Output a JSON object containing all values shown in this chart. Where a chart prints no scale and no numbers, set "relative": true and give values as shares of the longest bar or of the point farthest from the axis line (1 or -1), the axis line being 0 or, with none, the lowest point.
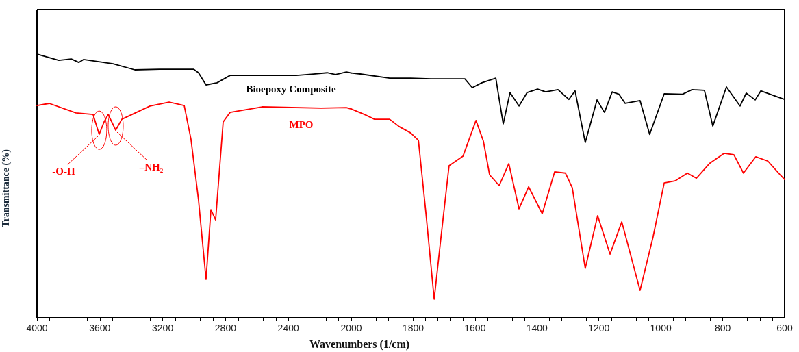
{
  "chart_data": [
    {
      "type": "line",
      "relative": true,
      "ylabel": "Transmittance (%)",
      "legend": false,
      "grid": false,
      "marker": "none",
      "line_style": "solid",
      "xlim": [
        4000,
        2000
      ],
      "xticks": [
        4000,
        {
          "value": 3920,
          "label": null
        },
        {
          "value": 3840,
          "label": null
        },
        {
          "value": 3760,
          "label": null
        },
        {
          "value": 3680,
          "label": null
        },
        3600,
        {
          "value": 3520,
          "label": null
        },
        {
          "value": 3440,
          "label": null
        },
        {
          "value": 3360,
          "label": null
        },
        {
          "value": 3280,
          "label": null
        },
        3200,
        {
          "value": 3120,
          "label": null
        },
        {
          "value": 3040,
          "label": null
        },
        {
          "value": 2960,
          "label": null
        },
        {
          "value": 2880,
          "label": null
        },
        2800,
        {
          "value": 2720,
          "label": null
        },
        {
          "value": 2640,
          "label": null
        },
        {
          "value": 2560,
          "label": null
        },
        {
          "value": 2480,
          "label": null
        },
        2400,
        {
          "value": 2320,
          "label": null
        },
        {
          "value": 2240,
          "label": null
        },
        {
          "value": 2160,
          "label": null
        },
        {
          "value": 2080,
          "label": null
        },
        2000
      ],
      "series": [
        {
          "name": "Bioepoxy Composite",
          "color": "#000000",
          "x": [
            4000,
            3991,
            3861,
            3782,
            3734,
            3704,
            3516,
            3377,
            3220,
            3002,
            2972,
            2924,
            2854,
            2771,
            2506,
            2349,
            2240,
            2153,
            2100,
            2031,
            2000
          ],
          "values": [
            1.0,
            0.996,
            0.974,
            0.979,
            0.966,
            0.977,
            0.961,
            0.938,
            0.94,
            0.94,
            0.927,
            0.881,
            0.889,
            0.917,
            0.917,
            0.917,
            0.922,
            0.927,
            0.92,
            0.93,
            0.926
          ]
        },
        {
          "name": "MPO",
          "color": "#ff0000",
          "x": [
            4000,
            3922,
            3752,
            3643,
            3604,
            3573,
            3547,
            3499,
            3460,
            3281,
            3159,
            3063,
            3020,
            2972,
            2924,
            2893,
            2863,
            2815,
            2771,
            2567,
            2192,
            2031,
            2000
          ],
          "values": [
            0.803,
            0.811,
            0.775,
            0.769,
            0.694,
            0.741,
            0.769,
            0.71,
            0.751,
            0.801,
            0.816,
            0.803,
            0.676,
            0.446,
            0.145,
            0.409,
            0.37,
            0.741,
            0.777,
            0.798,
            0.793,
            0.795,
            0.79
          ]
        }
      ],
      "annotations": [
        {
          "text": "-O-H",
          "x": 3604,
          "y": 0.694
        },
        {
          "text": "–NH₂",
          "x": 3499,
          "y": 0.71
        }
      ]
    },
    {
      "type": "line",
      "relative": true,
      "xlabel": "Wavenumbers (1/cm)",
      "legend": false,
      "grid": false,
      "marker": "none",
      "line_style": "solid",
      "xlim": [
        2000,
        600
      ],
      "xticks": [
        {
          "value": 2000,
          "label": null
        },
        {
          "value": 1960,
          "label": null
        },
        {
          "value": 1920,
          "label": null
        },
        {
          "value": 1880,
          "label": null
        },
        {
          "value": 1840,
          "label": null
        },
        1800,
        {
          "value": 1760,
          "label": null
        },
        {
          "value": 1720,
          "label": null
        },
        {
          "value": 1680,
          "label": null
        },
        {
          "value": 1640,
          "label": null
        },
        1600,
        {
          "value": 1560,
          "label": null
        },
        {
          "value": 1520,
          "label": null
        },
        {
          "value": 1480,
          "label": null
        },
        {
          "value": 1440,
          "label": null
        },
        1400,
        {
          "value": 1360,
          "label": null
        },
        {
          "value": 1320,
          "label": null
        },
        {
          "value": 1280,
          "label": null
        },
        {
          "value": 1240,
          "label": null
        },
        1200,
        {
          "value": 1160,
          "label": null
        },
        {
          "value": 1120,
          "label": null
        },
        {
          "value": 1080,
          "label": null
        },
        {
          "value": 1040,
          "label": null
        },
        1000,
        {
          "value": 960,
          "label": null
        },
        {
          "value": 920,
          "label": null
        },
        {
          "value": 880,
          "label": null
        },
        {
          "value": 840,
          "label": null
        },
        800,
        {
          "value": 760,
          "label": null
        },
        {
          "value": 720,
          "label": null
        },
        {
          "value": 680,
          "label": null
        },
        {
          "value": 640,
          "label": null
        },
        600
      ],
      "series": [
        {
          "color": "#000000",
          "x": [
            2000,
            1971,
            1876,
            1808,
            1743,
            1633,
            1609,
            1578,
            1533,
            1509,
            1487,
            1458,
            1432,
            1398,
            1372,
            1332,
            1297,
            1277,
            1244,
            1206,
            1182,
            1157,
            1135,
            1115,
            1067,
            1036,
            989,
            930,
            899,
            859,
            832,
            788,
            744,
            724,
            695,
            677,
            613,
            600
          ],
          "values": [
            1.0,
            0.996,
            0.979,
            0.979,
            0.976,
            0.976,
            0.94,
            0.96,
            0.979,
            0.792,
            0.92,
            0.865,
            0.92,
            0.934,
            0.923,
            0.932,
            0.892,
            0.927,
            0.716,
            0.89,
            0.839,
            0.923,
            0.913,
            0.876,
            0.887,
            0.749,
            0.915,
            0.913,
            0.932,
            0.929,
            0.783,
            0.943,
            0.865,
            0.918,
            0.89,
            0.927,
            0.898,
            0.892
          ]
        },
        {
          "color": "#ff0000",
          "x": [
            2000,
            1956,
            1925,
            1876,
            1845,
            1808,
            1783,
            1759,
            1732,
            1710,
            1684,
            1639,
            1597,
            1573,
            1553,
            1522,
            1491,
            1458,
            1427,
            1383,
            1343,
            1308,
            1286,
            1244,
            1204,
            1164,
            1126,
            1067,
            1025,
            989,
            954,
            914,
            885,
            843,
            795,
            764,
            733,
            693,
            654,
            613,
            600
          ],
          "values": [
            0.853,
            0.83,
            0.811,
            0.811,
            0.781,
            0.755,
            0.725,
            0.431,
            0.076,
            0.33,
            0.621,
            0.66,
            0.806,
            0.721,
            0.584,
            0.54,
            0.63,
            0.445,
            0.535,
            0.425,
            0.596,
            0.591,
            0.531,
            0.202,
            0.417,
            0.26,
            0.392,
            0.112,
            0.33,
            0.551,
            0.559,
            0.591,
            0.57,
            0.63,
            0.672,
            0.666,
            0.591,
            0.658,
            0.64,
            0.582,
            0.565
          ]
        }
      ]
    }
  ]
}
